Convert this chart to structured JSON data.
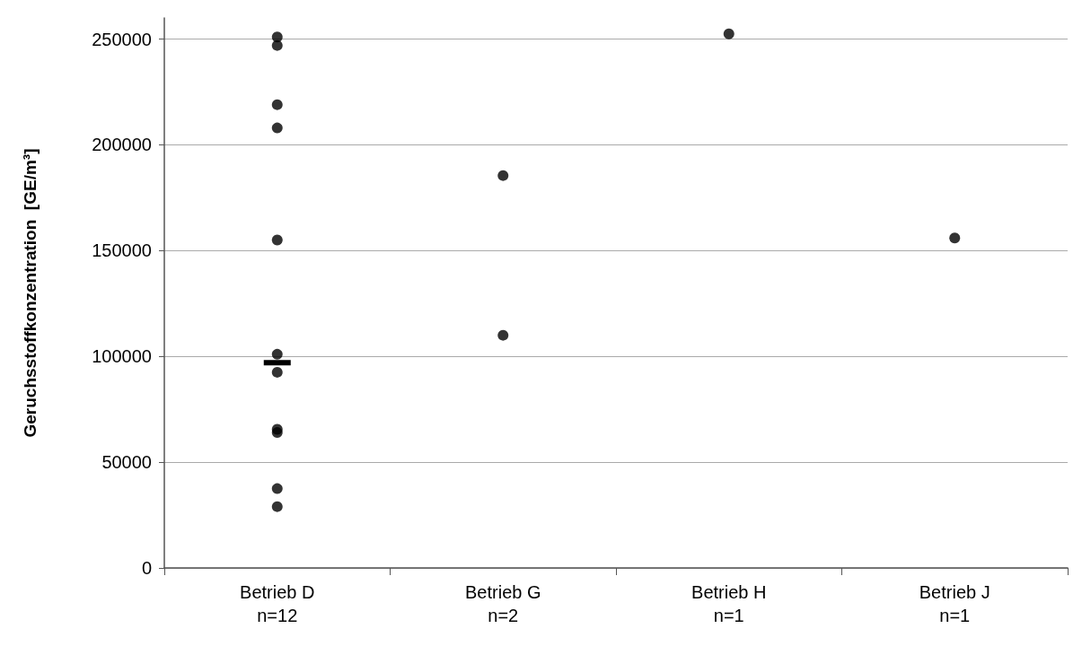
{
  "chart_data": {
    "type": "scatter",
    "ylabel": "Geruchsstoffkonzentration  [GE/m³]",
    "categories": [
      "Betrieb D\nn=12",
      "Betrieb G\nn=2",
      "Betrieb H\nn=1",
      "Betrieb J\nn=1"
    ],
    "series": [
      {
        "color": "#000000",
        "marker": "circle",
        "x": [
          "Betrieb D\nn=12",
          "Betrieb D\nn=12",
          "Betrieb D\nn=12",
          "Betrieb D\nn=12",
          "Betrieb D\nn=12",
          "Betrieb D\nn=12",
          "Betrieb D\nn=12",
          "Betrieb D\nn=12",
          "Betrieb D\nn=12",
          "Betrieb D\nn=12",
          "Betrieb D\nn=12",
          "Betrieb D\nn=12",
          "Betrieb G\nn=2",
          "Betrieb G\nn=2",
          "Betrieb H\nn=1",
          "Betrieb J\nn=1"
        ],
        "values": [
          251000,
          247000,
          219000,
          208000,
          155000,
          101000,
          92500,
          65500,
          64000,
          37500,
          29000,
          null,
          185500,
          110000,
          252500,
          156000
        ]
      },
      {
        "type": "box",
        "color": "#000000",
        "boxes": [
          {
            "low": 97000,
            "q1": 97000,
            "median": 97000,
            "q3": 97000,
            "high": 97000
          },
          null,
          null,
          null
        ]
      }
    ],
    "ylim": [
      0,
      260000
    ],
    "yticks": [
      0,
      50000,
      100000,
      150000,
      200000,
      250000
    ],
    "grid": "y"
  }
}
